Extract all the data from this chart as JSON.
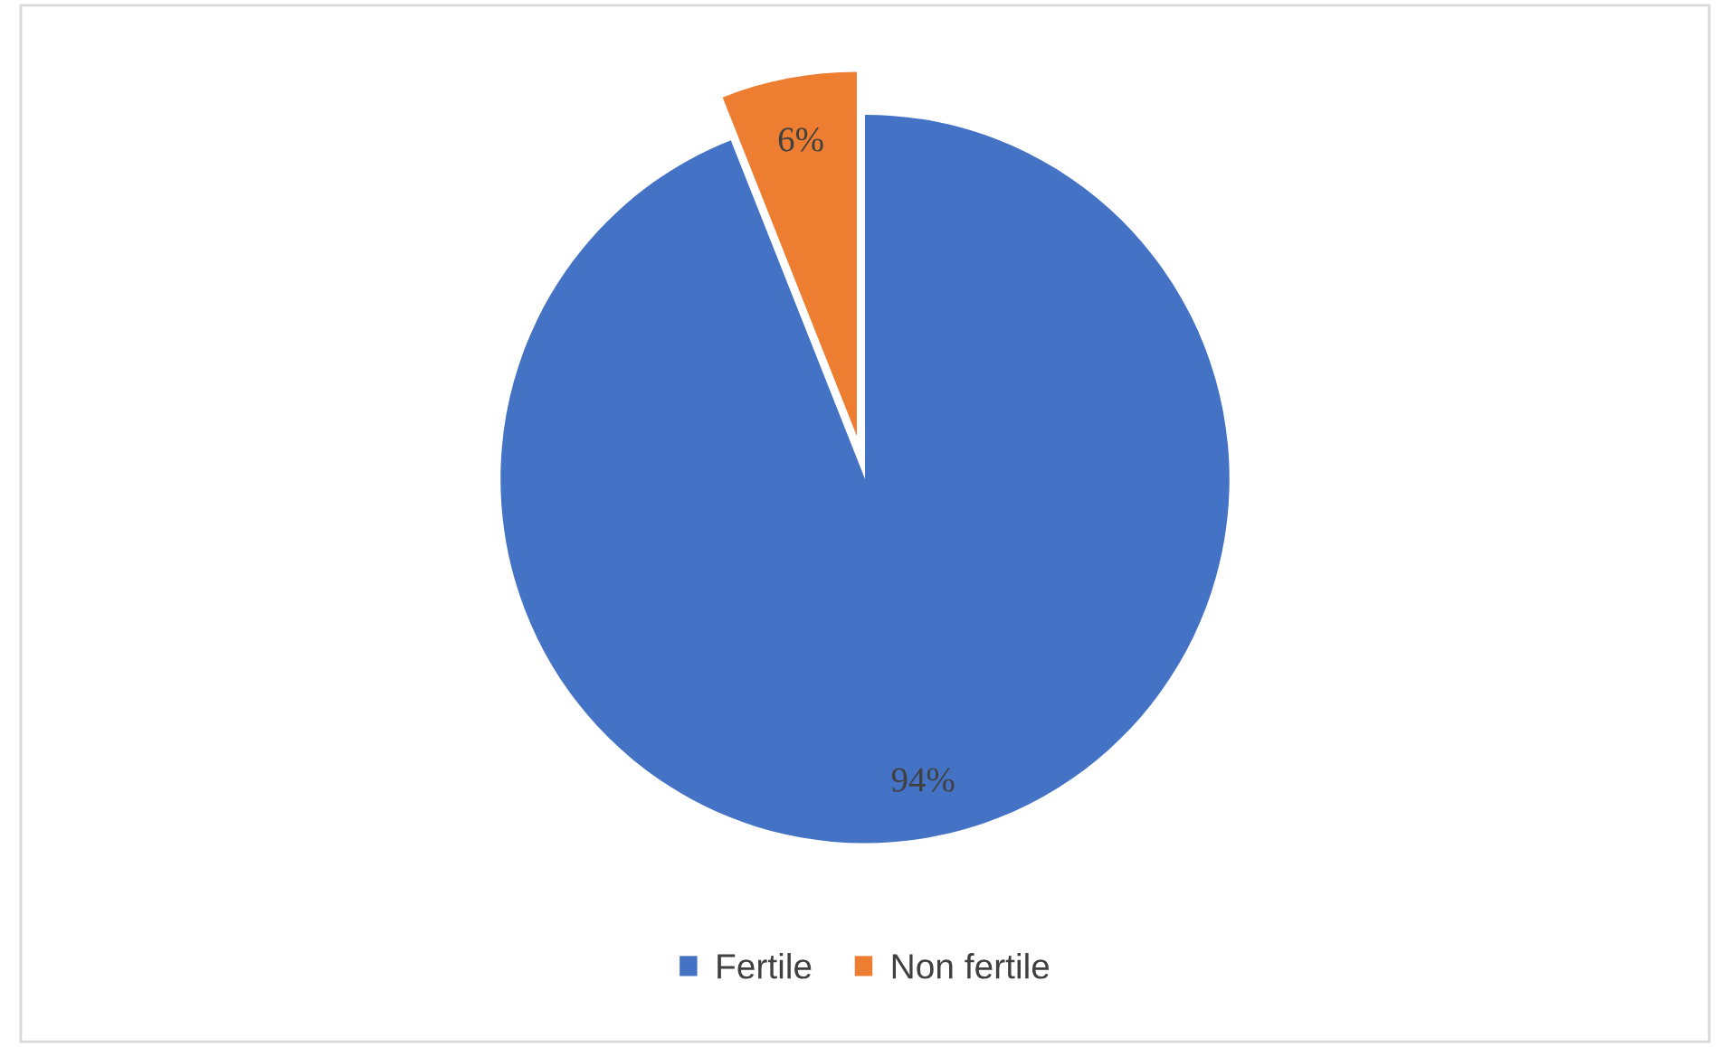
{
  "chart_data": {
    "type": "pie",
    "categories": [
      "Fertile",
      "Non fertile"
    ],
    "values": [
      94,
      6
    ],
    "colors": [
      "#4472c4",
      "#ed7d31"
    ],
    "value_labels": [
      "94%",
      "6%"
    ],
    "legend": "bottom"
  }
}
